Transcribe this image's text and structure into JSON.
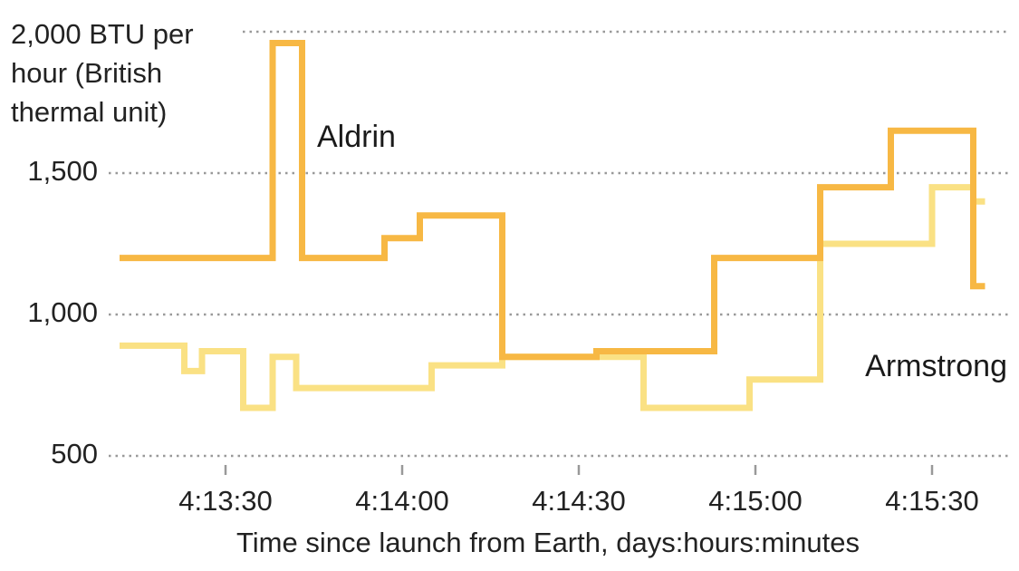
{
  "chart_data": {
    "type": "step",
    "x_label": "Time since launch from Earth, days:hours:minutes",
    "xlim": [
      6550,
      6703
    ],
    "xticks": [
      {
        "value": 6570,
        "label": "4:13:30"
      },
      {
        "value": 6600,
        "label": "4:14:00"
      },
      {
        "value": 6630,
        "label": "4:14:30"
      },
      {
        "value": 6660,
        "label": "4:15:00"
      },
      {
        "value": 6690,
        "label": "4:15:30"
      }
    ],
    "ylim": [
      500,
      2000
    ],
    "yticks": [
      {
        "value": 500,
        "label": "500"
      },
      {
        "value": 1000,
        "label": "1,000"
      },
      {
        "value": 1500,
        "label": "1,500"
      },
      {
        "value": 2000,
        "label": "2,000 BTU per hour (British thermal unit)"
      }
    ],
    "grid": true,
    "series": [
      {
        "name": "Aldrin",
        "color": "#f7b844",
        "x": [
          6552,
          6578,
          6583,
          6597,
          6603,
          6617,
          6633,
          6653,
          6671,
          6683,
          6697,
          6699
        ],
        "values": [
          1200,
          1960,
          1200,
          1270,
          1350,
          850,
          870,
          1200,
          1450,
          1650,
          1100,
          1100
        ]
      },
      {
        "name": "Armstrong",
        "color": "#fae184",
        "x": [
          6552,
          6563,
          6566,
          6573,
          6578,
          6582,
          6605,
          6617,
          6641,
          6659,
          6671,
          6690,
          6697,
          6699
        ],
        "values": [
          890,
          800,
          870,
          670,
          850,
          740,
          820,
          850,
          670,
          770,
          1250,
          1450,
          1400,
          1400
        ]
      }
    ]
  }
}
